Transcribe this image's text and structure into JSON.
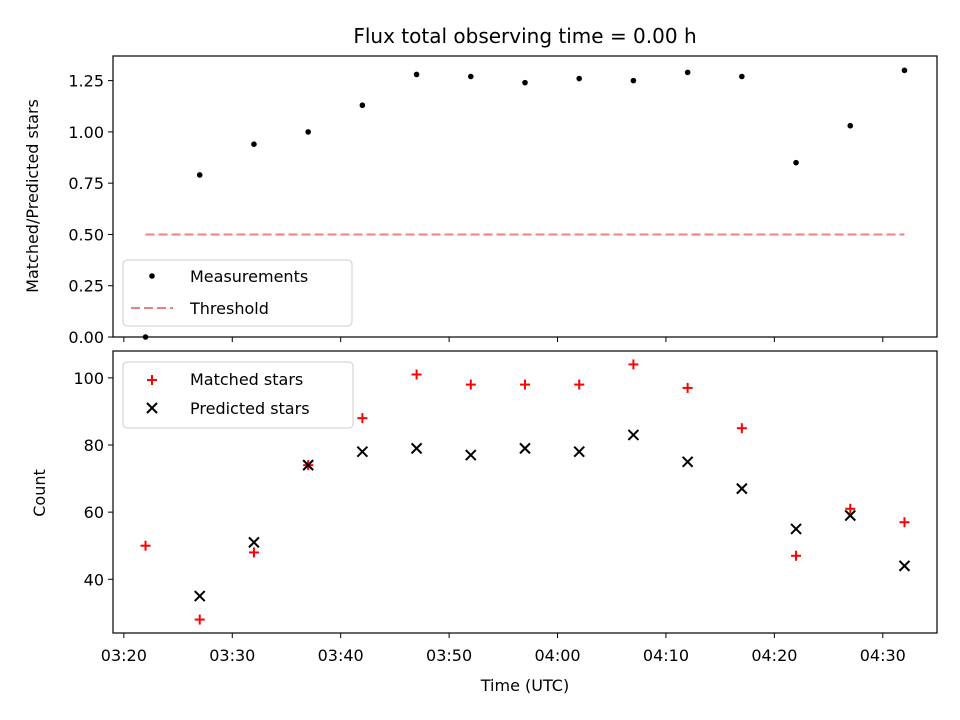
{
  "chart_data": [
    {
      "type": "scatter",
      "title": "Flux total observing time = 0.00 h",
      "xlabel": "",
      "ylabel": "Matched/Predicted stars",
      "ylim": [
        0,
        1.37
      ],
      "yticks": [
        "0.00",
        "0.25",
        "0.50",
        "0.75",
        "1.00",
        "1.25"
      ],
      "legend": {
        "placement": "lower-left",
        "entries": [
          "Measurements",
          "Threshold"
        ]
      },
      "series": [
        {
          "name": "Measurements",
          "marker": "dot",
          "color": "#000000",
          "x": [
            "03:22",
            "03:27",
            "03:32",
            "03:37",
            "03:42",
            "03:47",
            "03:52",
            "03:57",
            "04:02",
            "04:07",
            "04:12",
            "04:17",
            "04:22",
            "04:27",
            "04:32"
          ],
          "y": [
            0.0,
            0.79,
            0.94,
            1.0,
            1.13,
            1.28,
            1.27,
            1.24,
            1.26,
            1.25,
            1.29,
            1.27,
            0.85,
            1.03,
            1.3
          ]
        },
        {
          "name": "Threshold",
          "line": "dashed",
          "color": "#f08080",
          "x": [
            "03:22",
            "04:32"
          ],
          "y": [
            0.5,
            0.5
          ]
        }
      ]
    },
    {
      "type": "scatter",
      "title": "",
      "xlabel": "Time (UTC)",
      "ylabel": "Count",
      "xlim": [
        "03:19",
        "04:35"
      ],
      "ylim": [
        24,
        108
      ],
      "xticks": [
        "03:20",
        "03:30",
        "03:40",
        "03:50",
        "04:00",
        "04:10",
        "04:20",
        "04:30"
      ],
      "yticks": [
        "40",
        "60",
        "80",
        "100"
      ],
      "legend": {
        "placement": "top-left",
        "entries": [
          "Matched stars",
          "Predicted stars"
        ]
      },
      "categories": [
        "03:22",
        "03:27",
        "03:32",
        "03:37",
        "03:42",
        "03:47",
        "03:52",
        "03:57",
        "04:02",
        "04:07",
        "04:12",
        "04:17",
        "04:22",
        "04:27",
        "04:32"
      ],
      "series": [
        {
          "name": "Matched stars",
          "marker": "plus",
          "color": "#ff0000",
          "values": [
            50,
            28,
            48,
            74,
            88,
            101,
            98,
            98,
            98,
            104,
            97,
            85,
            47,
            61,
            57
          ]
        },
        {
          "name": "Predicted stars",
          "marker": "x",
          "color": "#000000",
          "values": [
            null,
            35,
            51,
            74,
            78,
            79,
            77,
            79,
            78,
            83,
            75,
            67,
            55,
            59,
            44
          ]
        }
      ]
    }
  ]
}
